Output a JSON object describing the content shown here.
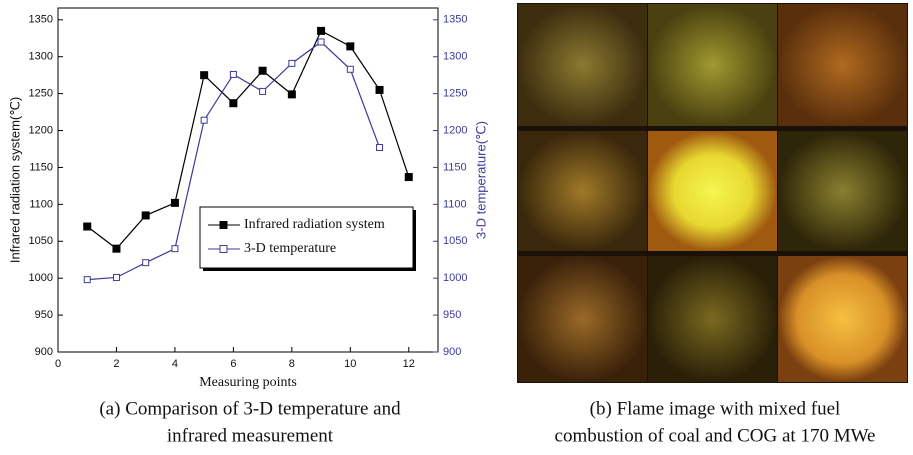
{
  "chart_data": {
    "type": "line",
    "x_label": "Measuring points",
    "y_label": "Infrared radiation system(℃)",
    "y2_label": "3-D temperature(℃)",
    "x": [
      1,
      2,
      3,
      4,
      5,
      6,
      7,
      8,
      9,
      10,
      11,
      12
    ],
    "series": [
      {
        "name": "Infrared radiation system",
        "color": "#000000",
        "values": [
          1070,
          1040,
          1085,
          1102,
          1275,
          1237,
          1281,
          1249,
          1335,
          1314,
          1255,
          1137
        ]
      },
      {
        "name": "3-D temperature",
        "color": "#3b3b9a",
        "axis": "y2",
        "values": [
          998,
          1001,
          1021,
          1040,
          1214,
          1276,
          1253,
          1291,
          1320,
          1283,
          1177,
          null
        ]
      }
    ],
    "xlim": [
      0,
      13
    ],
    "xticks": [
      0,
      2,
      4,
      6,
      8,
      10,
      12
    ],
    "ylim": [
      900,
      1366
    ],
    "yticks": [
      900,
      950,
      1000,
      1050,
      1100,
      1150,
      1200,
      1250,
      1300,
      1350
    ],
    "y2lim": [
      900,
      1366
    ],
    "y2ticks": [
      900,
      950,
      1000,
      1050,
      1100,
      1150,
      1200,
      1250,
      1300,
      1350
    ],
    "legend": "center right",
    "caption": [
      "(a) Comparison of 3-D temperature and",
      "infrared measurement"
    ]
  },
  "image": {
    "caption": [
      "(b) Flame image with mixed fuel",
      "combustion of coal and COG at 170 MWe"
    ]
  }
}
